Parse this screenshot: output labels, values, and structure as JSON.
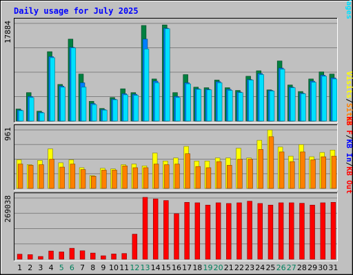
{
  "chart_data": {
    "type": "bar",
    "title": "Daily usage for July 2025",
    "categories": [
      "1",
      "2",
      "3",
      "4",
      "5",
      "6",
      "7",
      "8",
      "9",
      "10",
      "11",
      "12",
      "13",
      "14",
      "15",
      "16",
      "17",
      "18",
      "19",
      "20",
      "21",
      "22",
      "23",
      "24",
      "25",
      "26",
      "27",
      "28",
      "29",
      "30",
      "31"
    ],
    "weekend_days": [
      5,
      6,
      12,
      13,
      19,
      20,
      26,
      27
    ],
    "colors": {
      "hits": "#008040",
      "files": "#0080ff",
      "pages": "#00e0ff",
      "visits": "#ffff00",
      "sites": "#ff8000",
      "kbin": "#0000ff",
      "kbout": "#ff0000",
      "kbf": "#ff0000",
      "weekend": "#00805c",
      "title": "#0000ff",
      "background": "#c0c0c0"
    },
    "panels": [
      {
        "id": "hits",
        "ymax_label": "17884",
        "ylim": [
          0,
          17884
        ],
        "right_labels": [
          {
            "text": "Hits",
            "color": "#008040"
          },
          {
            "text": "/",
            "color": "#000000"
          },
          {
            "text": "Files",
            "color": "#0080ff"
          },
          {
            "text": "/",
            "color": "#000000"
          },
          {
            "text": "Pages",
            "color": "#00e0ff"
          }
        ],
        "series": [
          {
            "name": "Hits",
            "color": "#008040",
            "values": [
              2200,
              5200,
              1800,
              12700,
              6700,
              15000,
              8600,
              3600,
              2300,
              4300,
              5900,
              5200,
              17500,
              7700,
              17600,
              5200,
              8500,
              6200,
              6100,
              7500,
              6100,
              5600,
              8200,
              9200,
              5700,
              11000,
              6600,
              5400,
              7700,
              9000,
              8600
            ]
          },
          {
            "name": "Files",
            "color": "#0080ff",
            "values": [
              2000,
              4500,
              1600,
              11800,
              6400,
              13500,
              7000,
              3200,
              2100,
              4000,
              5000,
              4900,
              15000,
              7300,
              17000,
              4500,
              7000,
              5900,
              5800,
              7200,
              5800,
              5300,
              7600,
              8700,
              5600,
              9700,
              6200,
              5100,
              7300,
              8400,
              7900
            ]
          },
          {
            "name": "Pages",
            "color": "#00e0ff",
            "values": [
              1900,
              4300,
              1500,
              11600,
              6200,
              13400,
              6200,
              3000,
              2000,
              3900,
              4800,
              4700,
              13200,
              7000,
              16900,
              4300,
              6800,
              5800,
              5700,
              7000,
              5600,
              5200,
              7500,
              8500,
              5500,
              9500,
              6100,
              5000,
              7100,
              8200,
              7700
            ]
          }
        ]
      },
      {
        "id": "visits",
        "ymax_label": "961",
        "ylim": [
          0,
          961
        ],
        "right_labels": [
          {
            "text": "Visits",
            "color": "#ffff00"
          },
          {
            "text": "/",
            "color": "#000000"
          },
          {
            "text": "Sites",
            "color": "#ff8000"
          }
        ],
        "series": [
          {
            "name": "Visits",
            "color": "#ffff00",
            "values": [
              470,
              390,
              460,
              650,
              420,
              470,
              340,
              210,
              330,
              320,
              390,
              400,
              370,
              580,
              450,
              500,
              690,
              450,
              450,
              500,
              500,
              660,
              500,
              790,
              960,
              680,
              530,
              720,
              520,
              590,
              630
            ]
          },
          {
            "name": "Sites",
            "color": "#ff8000",
            "values": [
              400,
              380,
              390,
              480,
              350,
              400,
              310,
              200,
              300,
              300,
              370,
              340,
              340,
              400,
              390,
              400,
              570,
              360,
              340,
              440,
              380,
              480,
              480,
              640,
              850,
              600,
              440,
              600,
              470,
              520,
              530
            ]
          }
        ]
      },
      {
        "id": "kbytes",
        "ymax_label": "269038",
        "ylim": [
          0,
          269038
        ],
        "right_labels": [
          {
            "text": "KB F",
            "color": "#ff0000"
          },
          {
            "text": "/",
            "color": "#000000"
          },
          {
            "text": "KB In",
            "color": "#0000ff"
          },
          {
            "text": "/",
            "color": "#000000"
          },
          {
            "text": "KB Out",
            "color": "#ff0000"
          }
        ],
        "series": [
          {
            "name": "KB Out",
            "color": "#ff0000",
            "values": [
              22000,
              20000,
              12000,
              36000,
              32000,
              48000,
              37000,
              27000,
              15000,
              23000,
              25000,
              110000,
              272000,
              265000,
              258000,
              200000,
              250000,
              248000,
              238000,
              248000,
              245000,
              248000,
              255000,
              245000,
              238000,
              248000,
              248000,
              246000,
              238000,
              248000,
              250000
            ]
          }
        ]
      }
    ]
  }
}
